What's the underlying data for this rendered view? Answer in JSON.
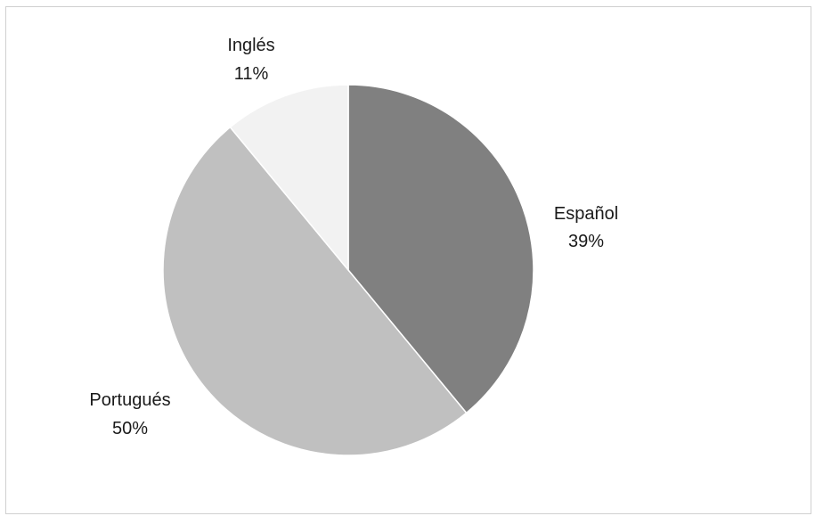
{
  "chart_data": {
    "type": "pie",
    "title": "",
    "categories": [
      "Español",
      "Portugués",
      "Inglés"
    ],
    "values": [
      39,
      50,
      11
    ],
    "percent_labels": [
      "39%",
      "50%",
      "11%"
    ],
    "colors": [
      "#808080",
      "#c0c0c0",
      "#f2f2f2"
    ],
    "start_angle": "12 o'clock",
    "direction": "clockwise",
    "legend": "none",
    "data_labels": "outside, category name and percentage"
  }
}
